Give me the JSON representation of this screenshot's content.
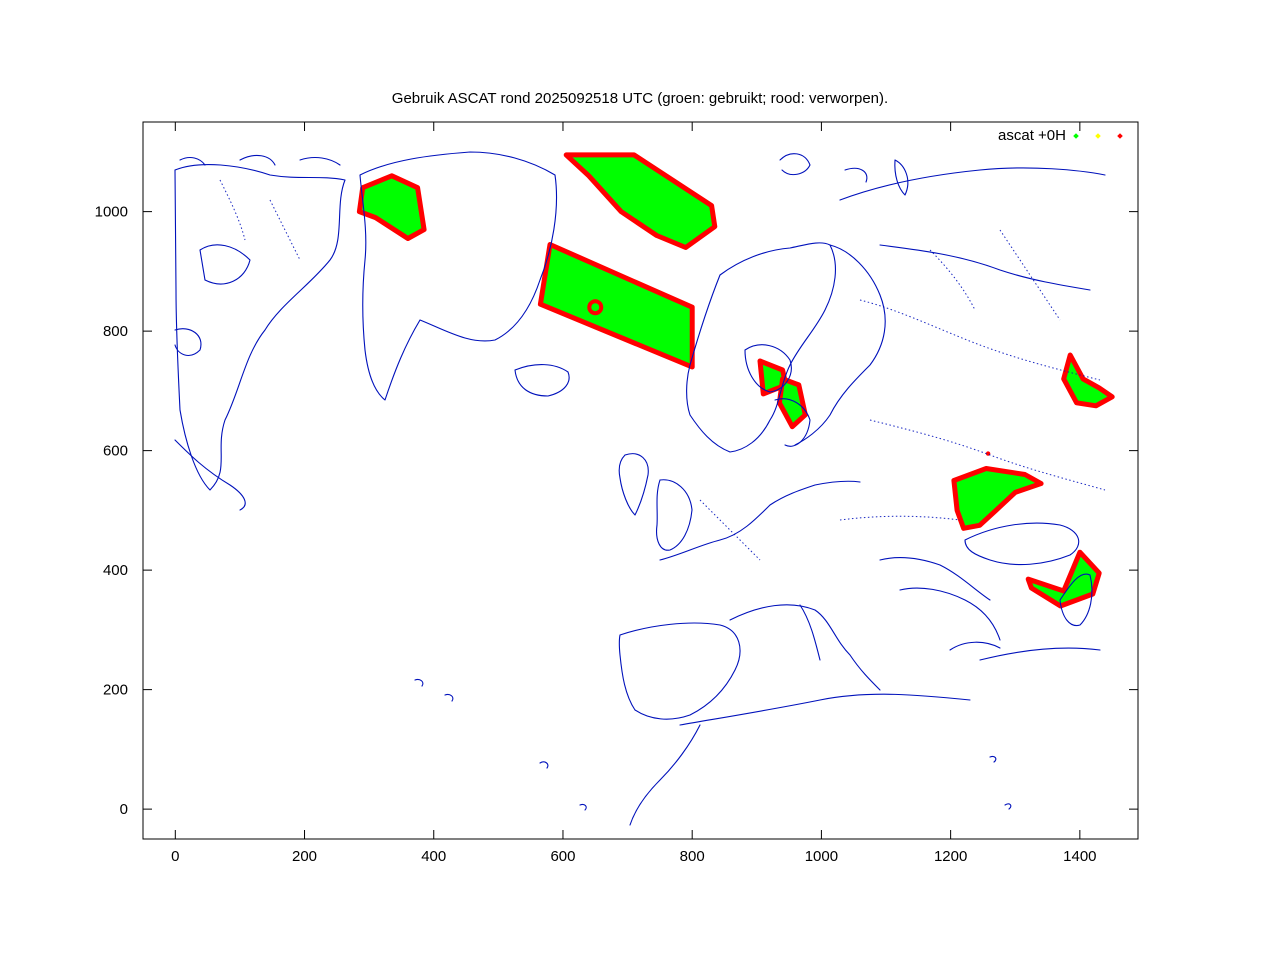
{
  "colors": {
    "background": "#ffffff",
    "axis": "#000000",
    "coastline": "#0011bb",
    "used": "#00ff00",
    "reserved": "#ffff00",
    "rejected": "#ff0000"
  },
  "chart_data": {
    "type": "scatter",
    "title": "Gebruik ASCAT rond 2025092518 UTC (groen: gebruikt; rood: verworpen).",
    "xlabel": "",
    "ylabel": "",
    "xlim": [
      -50,
      1490
    ],
    "ylim": [
      -50,
      1150
    ],
    "x_ticks": [
      0,
      200,
      400,
      600,
      800,
      1000,
      1200,
      1400
    ],
    "y_ticks": [
      0,
      200,
      400,
      600,
      800,
      1000
    ],
    "grid": false,
    "legend": {
      "placement": "top-right",
      "label": "ascat +0H"
    },
    "series": [
      {
        "kind": "swath",
        "regions": [
          {
            "polygon": [
              [
                290,
                1040
              ],
              [
                335,
                1060
              ],
              [
                375,
                1040
              ],
              [
                385,
                970
              ],
              [
                360,
                955
              ],
              [
                310,
                990
              ],
              [
                285,
                1000
              ]
            ]
          },
          {
            "polygon": [
              [
                580,
                945
              ],
              [
                800,
                840
              ],
              [
                800,
                740
              ],
              [
                565,
                845
              ]
            ]
          },
          {
            "polygon": [
              [
                605,
                1095
              ],
              [
                710,
                1095
              ],
              [
                830,
                1010
              ],
              [
                835,
                975
              ],
              [
                790,
                940
              ],
              [
                745,
                960
              ],
              [
                690,
                1000
              ],
              [
                640,
                1060
              ]
            ]
          },
          {
            "polygon": [
              [
                905,
                750
              ],
              [
                940,
                735
              ],
              [
                945,
                710
              ],
              [
                910,
                695
              ]
            ]
          },
          {
            "polygon": [
              [
                940,
                720
              ],
              [
                965,
                710
              ],
              [
                975,
                660
              ],
              [
                955,
                640
              ],
              [
                935,
                680
              ]
            ]
          },
          {
            "polygon": [
              [
                1205,
                550
              ],
              [
                1255,
                570
              ],
              [
                1315,
                560
              ],
              [
                1340,
                545
              ],
              [
                1300,
                530
              ],
              [
                1270,
                500
              ],
              [
                1245,
                475
              ],
              [
                1220,
                470
              ],
              [
                1210,
                500
              ]
            ]
          },
          {
            "polygon": [
              [
                1385,
                760
              ],
              [
                1405,
                720
              ],
              [
                1430,
                705
              ],
              [
                1450,
                690
              ],
              [
                1425,
                675
              ],
              [
                1395,
                680
              ],
              [
                1375,
                720
              ]
            ]
          },
          {
            "polygon": [
              [
                1320,
                385
              ],
              [
                1375,
                365
              ],
              [
                1400,
                430
              ],
              [
                1430,
                395
              ],
              [
                1420,
                360
              ],
              [
                1370,
                340
              ],
              [
                1325,
                370
              ]
            ]
          }
        ]
      }
    ]
  }
}
